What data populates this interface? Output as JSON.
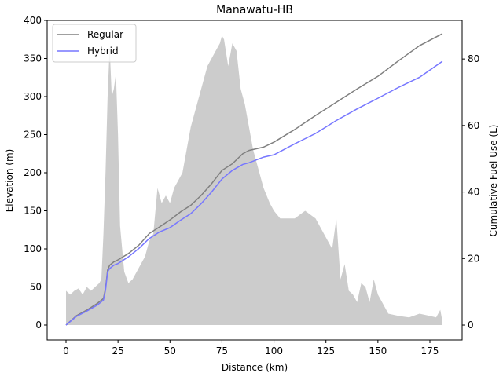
{
  "chart_data": {
    "type": "line",
    "title": "Manawatu-HB",
    "x_label": "Distance (km)",
    "y_label": "Elevation (m)",
    "y2_label": "Cumulative Fuel Use (L)",
    "xlim": [
      -9.07,
      190.5
    ],
    "xticks": [
      0,
      25,
      50,
      75,
      100,
      125,
      150,
      175
    ],
    "ylim": [
      -19.6,
      400
    ],
    "yticks": [
      0,
      50,
      100,
      150,
      200,
      250,
      300,
      350,
      400
    ],
    "y2lim": [
      -4.48,
      91.6
    ],
    "y2ticks": [
      0,
      20,
      40,
      60,
      80
    ],
    "legend": "upper left",
    "elevation": {
      "color": "#cccccc",
      "x": [
        0,
        2,
        4,
        6,
        8,
        10,
        12,
        14,
        16,
        17,
        18,
        19,
        20,
        21,
        22,
        23,
        24,
        25,
        26,
        27,
        28,
        30,
        32,
        34,
        36,
        38,
        40,
        42,
        44,
        46,
        48,
        50,
        52,
        54,
        56,
        58,
        60,
        62,
        64,
        66,
        68,
        70,
        72,
        74,
        75,
        76,
        78,
        80,
        82,
        84,
        86,
        88,
        90,
        92,
        95,
        98,
        100,
        103,
        106,
        110,
        115,
        120,
        124,
        128,
        130,
        132,
        134,
        136,
        138,
        140,
        142,
        144,
        146,
        148,
        150,
        155,
        160,
        165,
        170,
        175,
        178,
        180,
        181
      ],
      "values": [
        45,
        40,
        45,
        48,
        40,
        50,
        45,
        50,
        55,
        60,
        120,
        200,
        300,
        365,
        300,
        310,
        330,
        250,
        130,
        100,
        70,
        55,
        60,
        70,
        80,
        90,
        110,
        120,
        180,
        160,
        170,
        160,
        180,
        190,
        200,
        230,
        260,
        280,
        300,
        320,
        340,
        350,
        360,
        370,
        380,
        375,
        340,
        370,
        360,
        310,
        290,
        260,
        230,
        210,
        180,
        160,
        150,
        140,
        140,
        140,
        150,
        140,
        120,
        100,
        140,
        60,
        80,
        45,
        40,
        30,
        55,
        50,
        30,
        60,
        40,
        15,
        12,
        10,
        15,
        12,
        10,
        20,
        5
      ]
    },
    "x": [
      0,
      5,
      10,
      15,
      18,
      19,
      20,
      21,
      23,
      25,
      30,
      35,
      40,
      45,
      50,
      55,
      60,
      65,
      70,
      75,
      80,
      85,
      88,
      95,
      100,
      110,
      120,
      130,
      140,
      150,
      160,
      170,
      181
    ],
    "series": [
      {
        "name": "Regular",
        "color": "#808080",
        "axis": "y2",
        "values": [
          0,
          2.8,
          4.5,
          6.5,
          8,
          11,
          16.5,
          18,
          19,
          19.6,
          21.5,
          24,
          27.5,
          29.5,
          31.6,
          34,
          36,
          39,
          42.5,
          46.5,
          48.5,
          51.5,
          52.5,
          53.5,
          55,
          58.8,
          63,
          67,
          71,
          74.8,
          79.5,
          84,
          87.6
        ]
      },
      {
        "name": "Hybrid",
        "color": "#7777ff",
        "axis": "y2",
        "values": [
          0,
          2.6,
          4.2,
          6,
          7.5,
          10.5,
          16,
          17,
          18,
          18.5,
          20.5,
          23,
          26,
          28,
          29.3,
          31.5,
          33.5,
          36.5,
          40,
          43.9,
          46.5,
          48.3,
          48.8,
          50.5,
          51.2,
          54.5,
          57.6,
          61.5,
          65,
          68.2,
          71.5,
          74.5,
          79.3
        ]
      }
    ]
  }
}
